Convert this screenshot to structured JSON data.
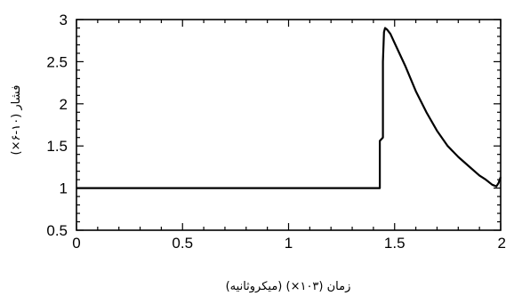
{
  "chart_data": {
    "type": "line",
    "title": "",
    "xlabel": "زمان (۱۰<sup>۳</sup>×) (میکروثانیه)",
    "xlabel_text": "زمان (۱۰۳×) (میکروثانیه)",
    "ylabel_text": "فشار (۱۰-۶×)",
    "xlim": [
      0,
      2
    ],
    "ylim": [
      0.5,
      3
    ],
    "x_ticks": [
      0,
      0.5,
      1,
      1.5,
      2
    ],
    "x_tick_labels": [
      "0",
      "0.5",
      "1",
      "1.5",
      "2"
    ],
    "y_ticks": [
      0.5,
      1,
      1.5,
      2,
      2.5,
      3
    ],
    "y_tick_labels": [
      "0.5",
      "1",
      "1.5",
      "2",
      "2.5",
      "3"
    ],
    "grid": false,
    "line_color": "#000000",
    "series": [
      {
        "x": [
          0,
          0.4,
          0.8,
          1.2,
          1.43,
          1.43,
          1.445,
          1.445,
          1.45,
          1.455,
          1.465,
          1.48,
          1.5,
          1.55,
          1.6,
          1.65,
          1.7,
          1.75,
          1.8,
          1.85,
          1.9,
          1.93,
          1.96,
          1.98,
          1.99,
          2.0
        ],
        "y": [
          1.0,
          1.0,
          1.0,
          1.0,
          1.0,
          1.56,
          1.6,
          2.5,
          2.85,
          2.9,
          2.88,
          2.83,
          2.72,
          2.45,
          2.15,
          1.9,
          1.68,
          1.5,
          1.37,
          1.26,
          1.15,
          1.1,
          1.04,
          1.02,
          1.06,
          1.13
        ]
      }
    ]
  }
}
